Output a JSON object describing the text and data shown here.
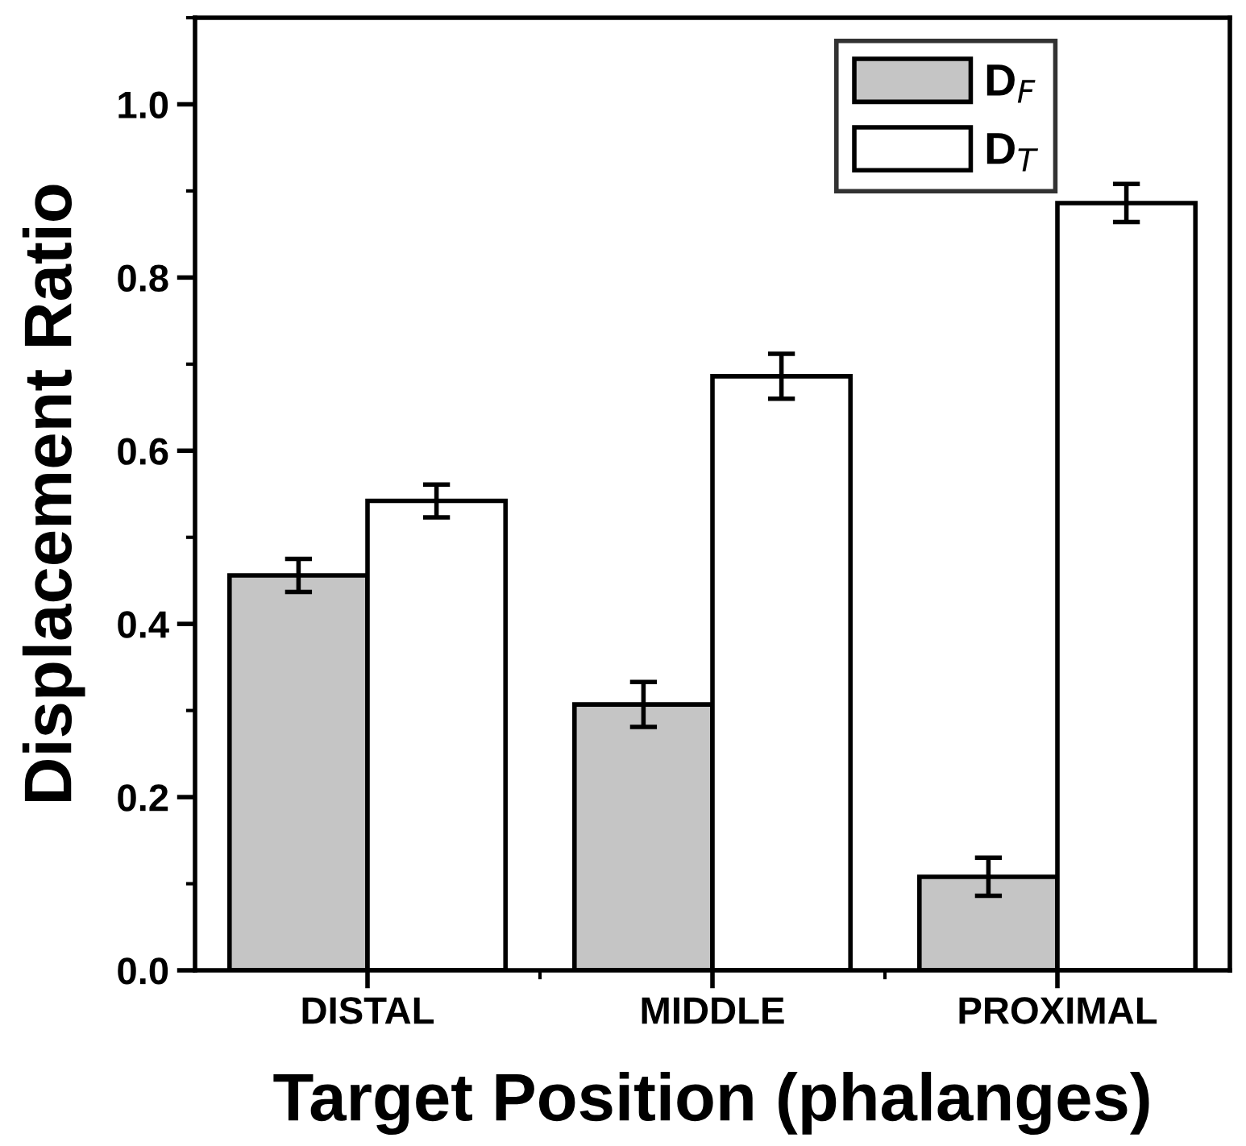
{
  "chart_data": {
    "type": "bar",
    "xlabel": "Target Position (phalanges)",
    "ylabel": "Displacement Ratio",
    "categories": [
      "DISTAL",
      "MIDDLE",
      "PROXIMAL"
    ],
    "series": [
      {
        "name": "D$_{F}$",
        "color": "#c5c5c5",
        "values": [
          0.456,
          0.307,
          0.108
        ],
        "errors": [
          0.019,
          0.026,
          0.022
        ]
      },
      {
        "name": "D$_{T}$",
        "color": "#ffffff",
        "values": [
          0.542,
          0.686,
          0.886
        ],
        "errors": [
          0.019,
          0.026,
          0.022
        ]
      }
    ],
    "ylim": [
      0,
      1.1
    ],
    "yticks": [
      {
        "value": 0,
        "label": "0.0"
      },
      0.2,
      0.4,
      0.6,
      0.8,
      {
        "value": 1,
        "label": "1.0"
      }
    ],
    "grid": false,
    "legend": "top right"
  }
}
